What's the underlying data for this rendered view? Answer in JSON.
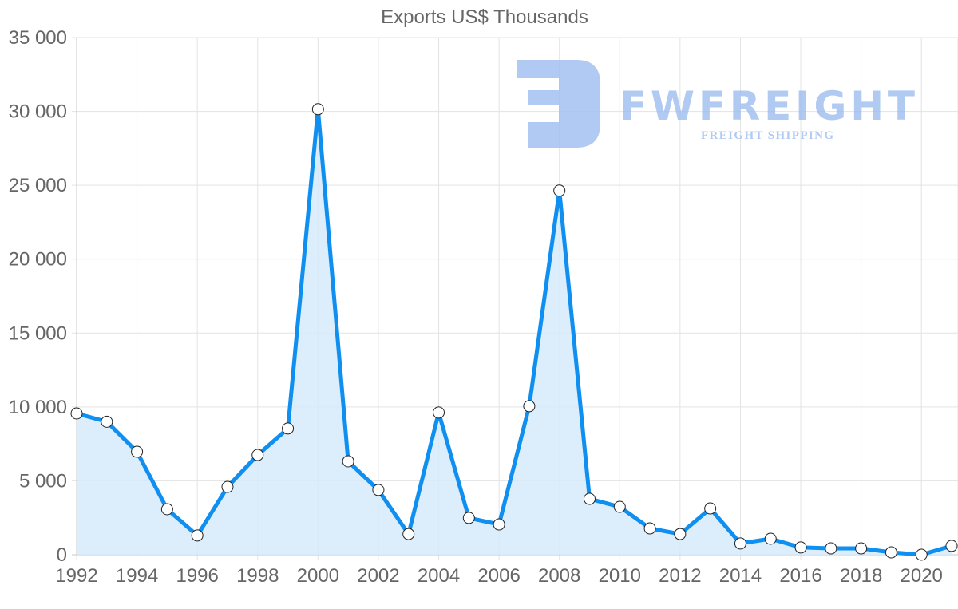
{
  "chart_data": {
    "type": "area",
    "title": "Exports US$ Thousands",
    "xlabel": "",
    "ylabel": "",
    "x": [
      1992,
      1993,
      1994,
      1995,
      1996,
      1997,
      1998,
      1999,
      2000,
      2001,
      2002,
      2003,
      2004,
      2005,
      2006,
      2007,
      2008,
      2009,
      2010,
      2011,
      2012,
      2013,
      2014,
      2015,
      2016,
      2017,
      2018,
      2019,
      2020,
      2021
    ],
    "series": [
      {
        "name": "Exports US$ Thousands",
        "values": [
          9560,
          9000,
          6970,
          3080,
          1300,
          4590,
          6750,
          8540,
          30150,
          6320,
          4380,
          1400,
          9620,
          2490,
          2050,
          10050,
          24640,
          3780,
          3240,
          1780,
          1400,
          3130,
          760,
          1080,
          490,
          430,
          430,
          160,
          0,
          600
        ]
      }
    ],
    "x_tick_labels": [
      "1992",
      "1994",
      "1996",
      "1998",
      "2000",
      "2002",
      "2004",
      "2006",
      "2008",
      "2010",
      "2012",
      "2014",
      "2016",
      "2018",
      "2020"
    ],
    "y_tick_labels": [
      "0",
      "5 000",
      "10 000",
      "15 000",
      "20 000",
      "25 000",
      "30 000",
      "35 000"
    ],
    "ylim": [
      0,
      35000
    ],
    "xlim": [
      1992,
      2021
    ],
    "grid": true,
    "legend": "none",
    "colors": {
      "line": "#0f8ff0",
      "fill": "#d6eafb",
      "point_fill": "#ffffff",
      "point_stroke": "#222222",
      "grid": "#e3e3e3",
      "axis_text": "#666666"
    }
  },
  "watermark": {
    "brand": "FWFREIGHT",
    "tagline": "FREIGHT SHIPPING",
    "color": "#9dbdf0"
  }
}
